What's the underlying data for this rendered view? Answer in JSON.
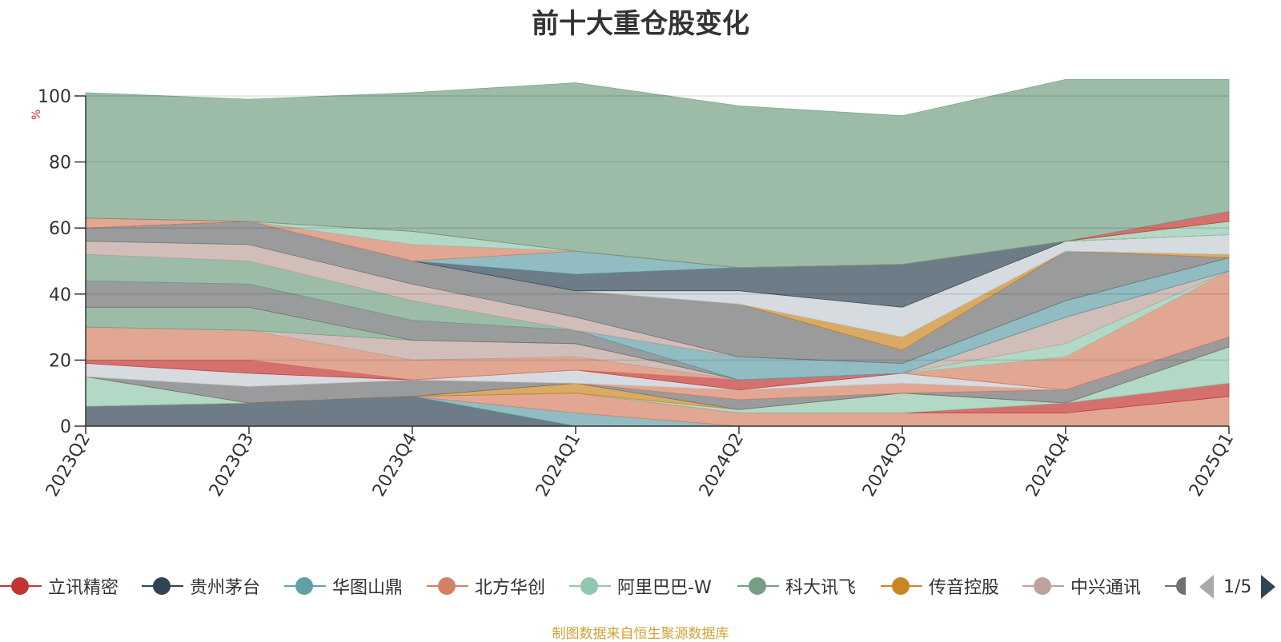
{
  "title": "前十大重仓股变化",
  "source_note": "制图数据来自恒生聚源数据库",
  "legend_page": "1/5",
  "legend": [
    {
      "name": "立讯精密",
      "color": "#c23531"
    },
    {
      "name": "贵州茅台",
      "color": "#2f4554"
    },
    {
      "name": "华图山鼎",
      "color": "#61a0a8"
    },
    {
      "name": "北方华创",
      "color": "#d48265"
    },
    {
      "name": "阿里巴巴-W",
      "color": "#91c7ae"
    },
    {
      "name": "科大讯飞",
      "color": "#749f83"
    },
    {
      "name": "传音控股",
      "color": "#ca8622"
    },
    {
      "name": "中兴通讯",
      "color": "#bda29a"
    },
    {
      "name": "",
      "color": "#6e7074"
    }
  ],
  "chart_data": {
    "type": "area",
    "stacked": true,
    "title": "前十大重仓股变化",
    "ylabel": "%",
    "ylim": [
      0,
      100
    ],
    "yticks": [
      0,
      20,
      40,
      60,
      80,
      100
    ],
    "grid": true,
    "legend_position": "bottom",
    "categories": [
      "2023Q2",
      "2023Q3",
      "2023Q4",
      "2024Q1",
      "2024Q2",
      "2024Q3",
      "2024Q4",
      "2025Q1"
    ],
    "bands": [
      {
        "name": "",
        "color": "#2f4554",
        "values": [
          6,
          7,
          9,
          0,
          0,
          0,
          0,
          0
        ]
      },
      {
        "name": "",
        "color": "#61a0a8",
        "values": [
          0,
          0,
          0,
          4,
          0,
          0,
          0,
          0
        ]
      },
      {
        "name": "",
        "color": "#d48265",
        "values": [
          0,
          0,
          0,
          6,
          4,
          4,
          4,
          9
        ]
      },
      {
        "name": "",
        "color": "#c23531",
        "values": [
          0,
          0,
          0,
          0,
          0,
          0,
          3,
          4
        ]
      },
      {
        "name": "",
        "color": "#91c7ae",
        "values": [
          9,
          0,
          0,
          0,
          1,
          6,
          0,
          11
        ]
      },
      {
        "name": "",
        "color": "#ca8622",
        "values": [
          0,
          0,
          0,
          3,
          0,
          0,
          0,
          0
        ]
      },
      {
        "name": "",
        "color": "#6e7074",
        "values": [
          0,
          5,
          5,
          0,
          3,
          0,
          4,
          3
        ]
      },
      {
        "name": "",
        "color": "#d48265",
        "values": [
          0,
          0,
          0,
          0,
          3,
          3,
          0,
          0
        ]
      },
      {
        "name": "",
        "color": "#c4ccd3",
        "values": [
          4,
          4,
          0,
          4,
          0,
          3,
          0,
          0
        ]
      },
      {
        "name": "",
        "color": "#c23531",
        "values": [
          1,
          4,
          0,
          0,
          3,
          0,
          0,
          0
        ]
      },
      {
        "name": "",
        "color": "#d48265",
        "values": [
          10,
          9,
          6,
          4,
          0,
          0,
          10,
          20
        ]
      },
      {
        "name": "",
        "color": "#91c7ae",
        "values": [
          0,
          0,
          0,
          0,
          0,
          0,
          4,
          0
        ]
      },
      {
        "name": "",
        "color": "#bda29a",
        "values": [
          0,
          0,
          6,
          4,
          0,
          0,
          8,
          0
        ]
      },
      {
        "name": "",
        "color": "#749f83",
        "values": [
          6,
          7,
          0,
          0,
          0,
          0,
          0,
          0
        ]
      },
      {
        "name": "",
        "color": "#6e7074",
        "values": [
          8,
          7,
          6,
          4,
          0,
          0,
          0,
          0
        ]
      },
      {
        "name": "",
        "color": "#61a0a8",
        "values": [
          0,
          0,
          0,
          0,
          7,
          3,
          5,
          4
        ]
      },
      {
        "name": "",
        "color": "#749f83",
        "values": [
          8,
          7,
          6,
          0,
          0,
          0,
          0,
          0
        ]
      },
      {
        "name": "",
        "color": "#bda29a",
        "values": [
          4,
          5,
          5,
          4,
          0,
          0,
          0,
          0
        ]
      },
      {
        "name": "",
        "color": "#6e7074",
        "values": [
          4,
          7,
          7,
          8,
          16,
          4,
          15,
          0
        ]
      },
      {
        "name": "",
        "color": "#ca8622",
        "values": [
          0,
          0,
          0,
          0,
          0,
          4,
          0,
          1
        ]
      },
      {
        "name": "",
        "color": "#749f83",
        "values": [
          0,
          0,
          0,
          0,
          0,
          0,
          0,
          0
        ]
      },
      {
        "name": "",
        "color": "#c4ccd3",
        "values": [
          0,
          0,
          0,
          0,
          4,
          9,
          3,
          6
        ]
      },
      {
        "name": "",
        "color": "#2f4554",
        "values": [
          0,
          0,
          0,
          5,
          7,
          13,
          0,
          0
        ]
      },
      {
        "name": "",
        "color": "#61a0a8",
        "values": [
          0,
          0,
          0,
          7,
          0,
          0,
          0,
          0
        ]
      },
      {
        "name": "",
        "color": "#d48265",
        "values": [
          3,
          0,
          5,
          0,
          0,
          0,
          0,
          0
        ]
      },
      {
        "name": "",
        "color": "#91c7ae",
        "values": [
          0,
          0,
          4,
          0,
          0,
          0,
          0,
          4
        ]
      },
      {
        "name": "",
        "color": "#c23531",
        "values": [
          0,
          0,
          0,
          0,
          0,
          0,
          0,
          3
        ]
      },
      {
        "name": "",
        "color": "#749f83",
        "values": [
          38,
          37,
          42,
          51,
          49,
          45,
          49,
          40
        ]
      }
    ]
  }
}
